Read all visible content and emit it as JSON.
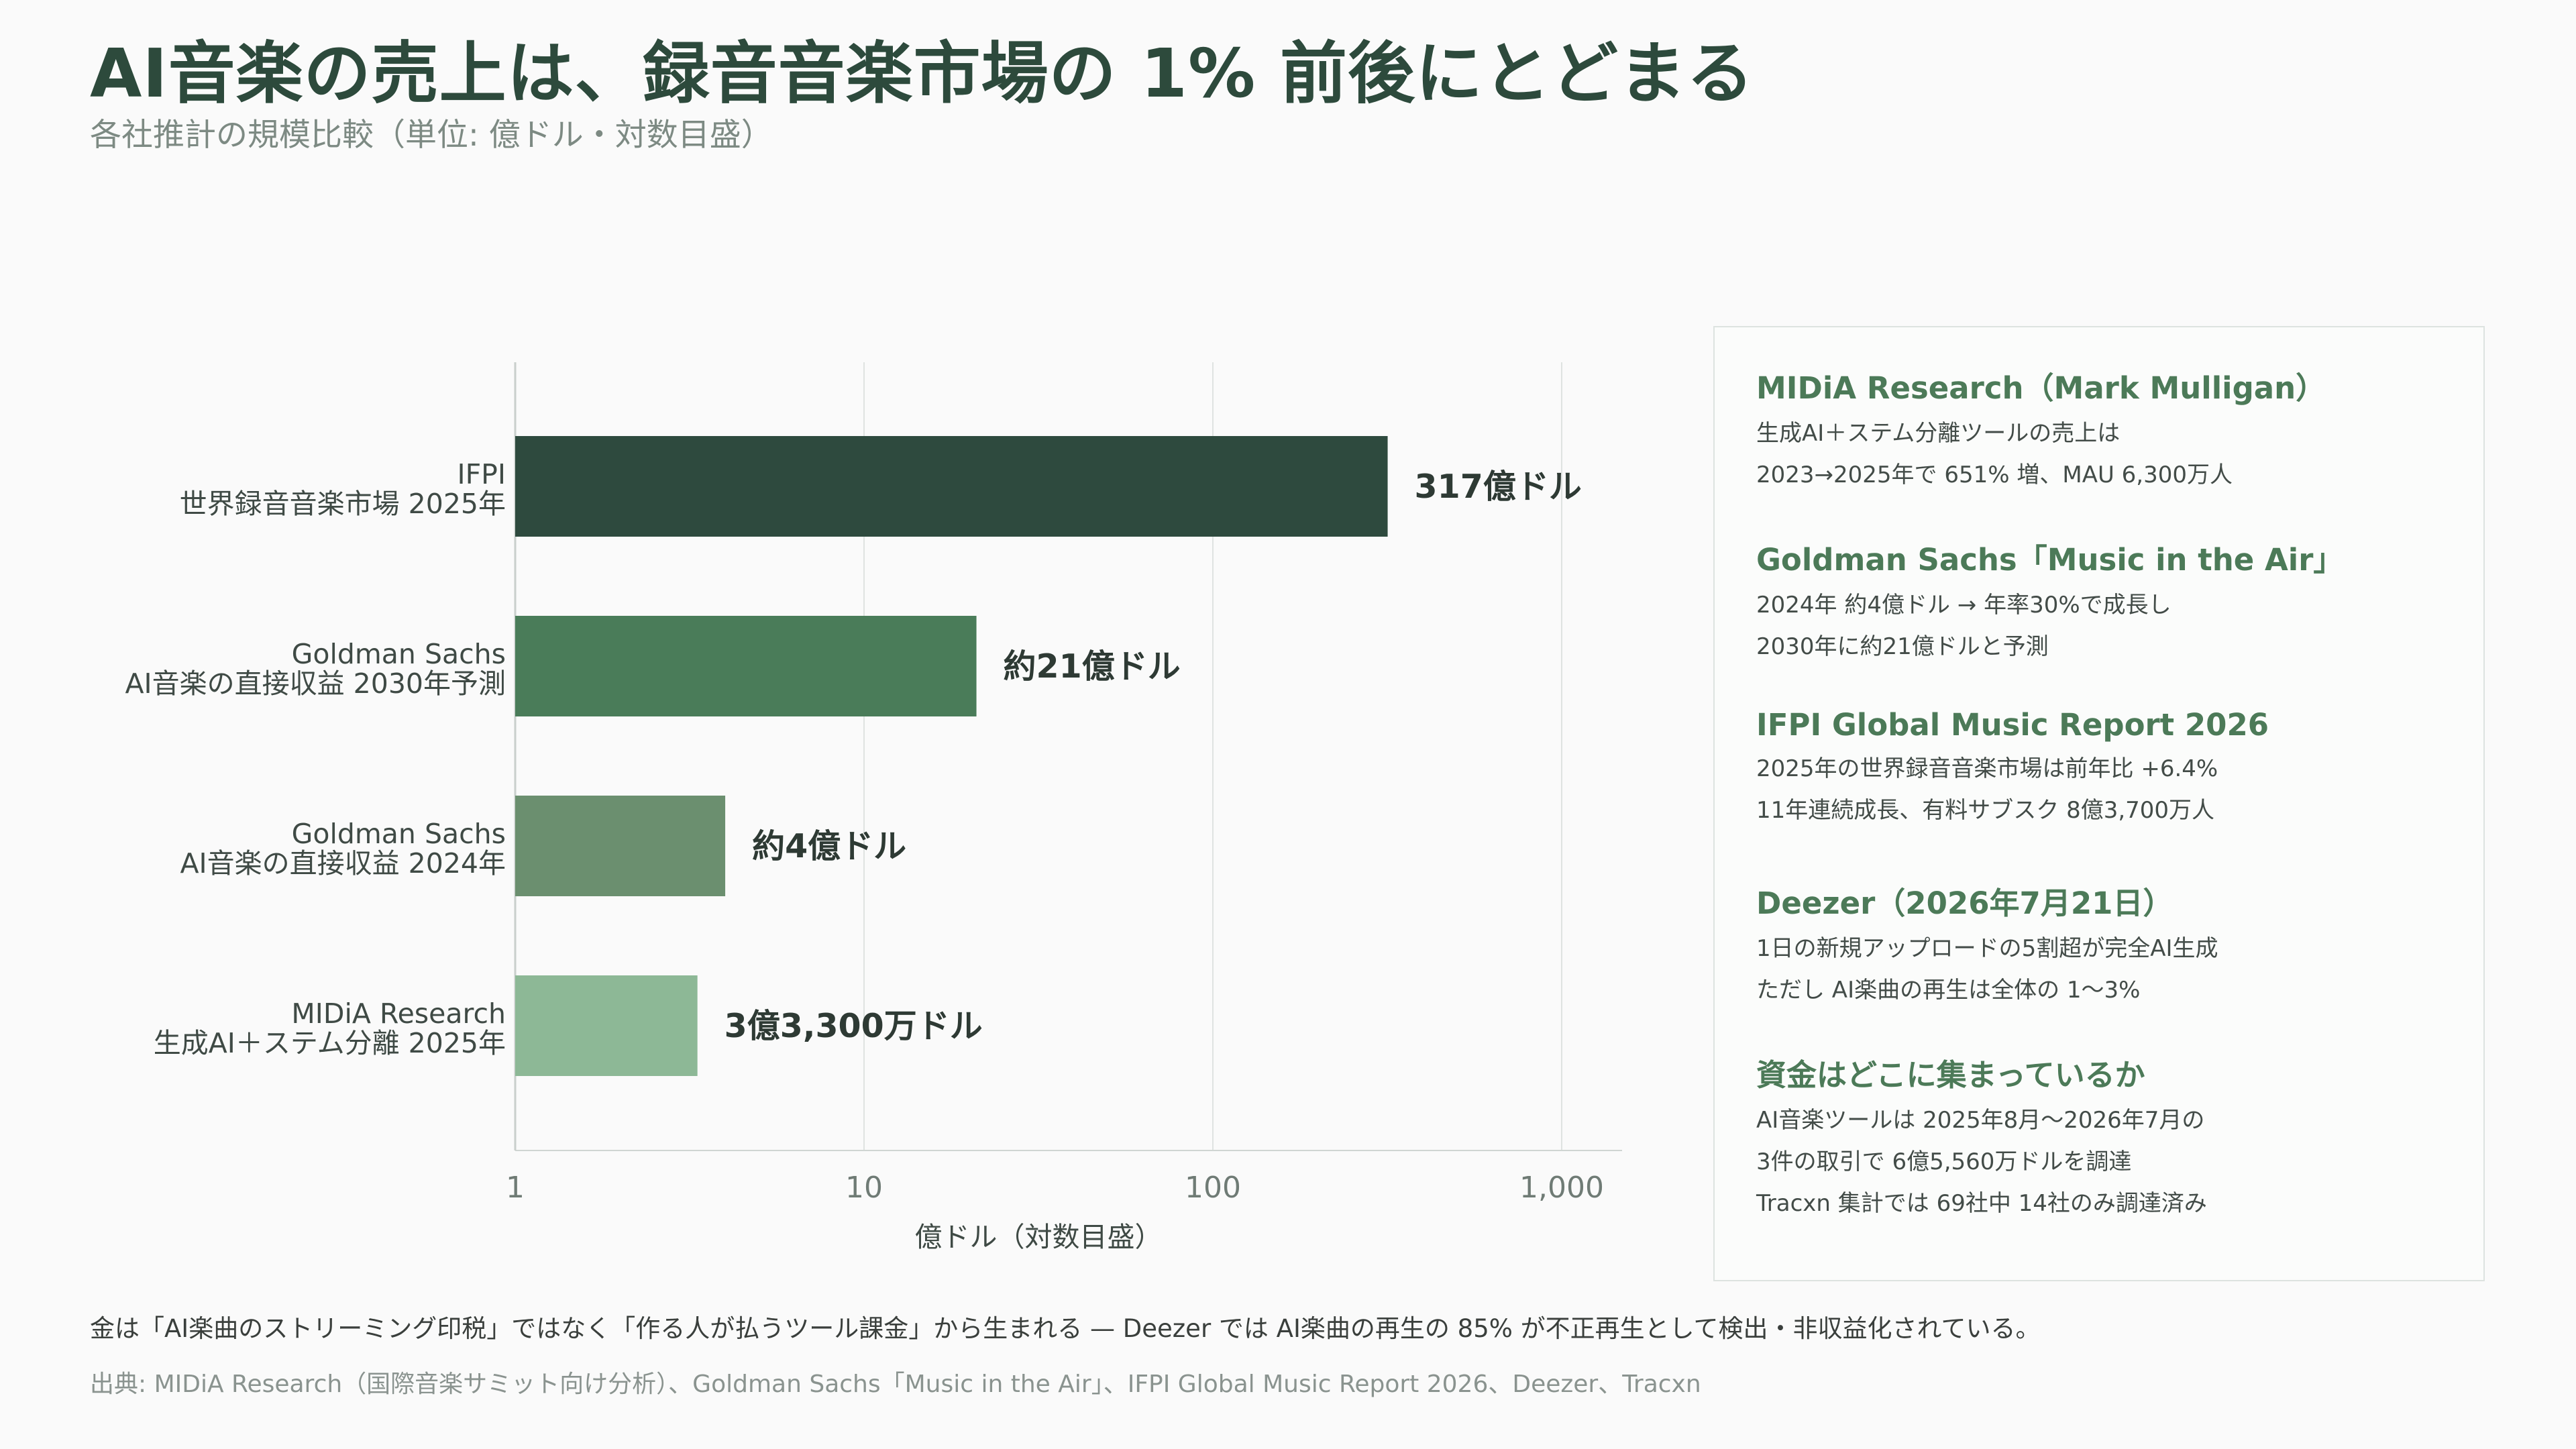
{
  "title": "AI音楽の売上は、録音音楽市場の 1% 前後にとどまる",
  "subtitle": "各社推計の規模比較（単位: 億ドル・対数目盛）",
  "chart_data": {
    "type": "bar",
    "orientation": "horizontal",
    "scale": "log",
    "xlim": [
      1,
      1000
    ],
    "xticks": [
      1,
      10,
      100,
      1000
    ],
    "xtick_labels": [
      "1",
      "10",
      "100",
      "1,000"
    ],
    "xlabel": "億ドル（対数目盛）",
    "grid": true,
    "bars": [
      {
        "label_line1": "IFPI",
        "label_line2": "世界録音音楽市場 2025年",
        "value": 317,
        "value_label": "317億ドル",
        "color": "#2e4a3e"
      },
      {
        "label_line1": "Goldman Sachs",
        "label_line2": "AI音楽の直接収益 2030年予測",
        "value": 21,
        "value_label": "約21億ドル",
        "color": "#4a7c59"
      },
      {
        "label_line1": "Goldman Sachs",
        "label_line2": "AI音楽の直接収益 2024年",
        "value": 4,
        "value_label": "約4億ドル",
        "color": "#6b8f6f"
      },
      {
        "label_line1": "MIDiA Research",
        "label_line2": "生成AI＋ステム分離 2025年",
        "value": 3.33,
        "value_label": "3億3,300万ドル",
        "color": "#8db896"
      }
    ]
  },
  "notes": [
    {
      "heading": "MIDiA Research（Mark Mulligan）",
      "lines": [
        "生成AI＋ステム分離ツールの売上は",
        "2023→2025年で 651% 増、MAU 6,300万人"
      ]
    },
    {
      "heading": "Goldman Sachs「Music in the Air」",
      "lines": [
        "2024年 約4億ドル → 年率30%で成長し",
        "2030年に約21億ドルと予測"
      ]
    },
    {
      "heading": "IFPI Global Music Report 2026",
      "lines": [
        "2025年の世界録音音楽市場は前年比 +6.4%",
        "11年連続成長、有料サブスク 8億3,700万人"
      ]
    },
    {
      "heading": "Deezer（2026年7月21日）",
      "lines": [
        "1日の新規アップロードの5割超が完全AI生成",
        "ただし AI楽曲の再生は全体の 1〜3%"
      ]
    },
    {
      "heading": "資金はどこに集まっているか",
      "lines": [
        "AI音楽ツールは 2025年8月〜2026年7月の",
        "3件の取引で 6億5,560万ドルを調達",
        "Tracxn 集計では 69社中 14社のみ調達済み"
      ]
    }
  ],
  "footer": "金は「AI楽曲のストリーミング印税」ではなく「作る人が払うツール課金」から生まれる — Deezer では AI楽曲の再生の 85% が不正再生として検出・非収益化されている。",
  "source": "出典: MIDiA Research（国際音楽サミット向け分析）、Goldman Sachs「Music in the Air」、IFPI Global Music Report 2026、Deezer、Tracxn"
}
